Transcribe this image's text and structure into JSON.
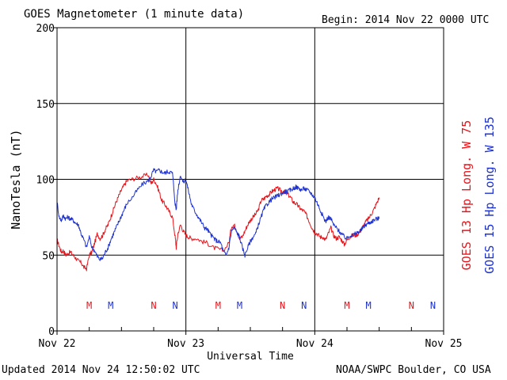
{
  "header": {
    "title": "GOES Magnetometer (1 minute data)",
    "begin": "Begin:  2014 Nov 22 0000 UTC"
  },
  "footer": {
    "updated": "Updated 2014 Nov 24 12:50:02 UTC",
    "credit": "NOAA/SWPC Boulder, CO USA"
  },
  "colors": {
    "goes13": "#e8141b",
    "goes15": "#1e32d2",
    "grid": "#000000"
  },
  "chart_data": {
    "type": "line",
    "title": "GOES Magnetometer (1 minute data)",
    "xlabel": "Universal Time",
    "ylabel": "NanoTesla (nT)",
    "ylim": [
      0,
      200
    ],
    "yticks": [
      0,
      50,
      100,
      150,
      200
    ],
    "xlim": [
      "2014-11-22 00:00",
      "2014-11-25 00:00"
    ],
    "xticks": [
      {
        "t": 0,
        "label": "Nov 22"
      },
      {
        "t": 24,
        "label": "Nov 23"
      },
      {
        "t": 48,
        "label": "Nov 24"
      },
      {
        "t": 72,
        "label": "Nov 25"
      }
    ],
    "x_unit": "hours after 2014-11-22 00:00 UTC",
    "grid": true,
    "legend_position": "right (vertical)",
    "series": [
      {
        "name": "GOES 13 Hp",
        "longitude": "Long. W 75",
        "color": "#e8141b",
        "points": [
          [
            0.0,
            60
          ],
          [
            0.4,
            56
          ],
          [
            0.8,
            52
          ],
          [
            1.2,
            53
          ],
          [
            1.6,
            50
          ],
          [
            2.0,
            51
          ],
          [
            2.5,
            52
          ],
          [
            3.0,
            50
          ],
          [
            3.5,
            48
          ],
          [
            4.0,
            46
          ],
          [
            4.5,
            45
          ],
          [
            5.0,
            42
          ],
          [
            5.5,
            41
          ],
          [
            6.0,
            50
          ],
          [
            6.5,
            52
          ],
          [
            7.0,
            58
          ],
          [
            7.5,
            64
          ],
          [
            8.0,
            61
          ],
          [
            8.5,
            63
          ],
          [
            9.0,
            67
          ],
          [
            9.5,
            70
          ],
          [
            10.0,
            75
          ],
          [
            10.5,
            80
          ],
          [
            11.0,
            85
          ],
          [
            11.5,
            89
          ],
          [
            12.0,
            93
          ],
          [
            12.5,
            96
          ],
          [
            13.0,
            99
          ],
          [
            14.0,
            100
          ],
          [
            15.0,
            101
          ],
          [
            16.0,
            102
          ],
          [
            17.0,
            103
          ],
          [
            17.5,
            97
          ],
          [
            18.0,
            100
          ],
          [
            18.5,
            97
          ],
          [
            19.0,
            92
          ],
          [
            19.5,
            86
          ],
          [
            20.0,
            84
          ],
          [
            20.5,
            81
          ],
          [
            21.0,
            78
          ],
          [
            21.5,
            75
          ],
          [
            22.0,
            62
          ],
          [
            22.2,
            55
          ],
          [
            22.5,
            64
          ],
          [
            23.0,
            70
          ],
          [
            23.5,
            66
          ],
          [
            24.0,
            63
          ],
          [
            24.5,
            62
          ],
          [
            25.0,
            61
          ],
          [
            26.0,
            61
          ],
          [
            27.0,
            59
          ],
          [
            28.0,
            58
          ],
          [
            29.0,
            55
          ],
          [
            30.0,
            54
          ],
          [
            31.0,
            53
          ],
          [
            32.0,
            58
          ],
          [
            32.5,
            69
          ],
          [
            33.0,
            70
          ],
          [
            33.5,
            66
          ],
          [
            34.0,
            61
          ],
          [
            34.5,
            62
          ],
          [
            35.0,
            66
          ],
          [
            35.5,
            70
          ],
          [
            36.0,
            73
          ],
          [
            36.5,
            75
          ],
          [
            37.0,
            77
          ],
          [
            37.5,
            80
          ],
          [
            38.0,
            86
          ],
          [
            38.5,
            87
          ],
          [
            39.0,
            89
          ],
          [
            39.5,
            90
          ],
          [
            40.0,
            92
          ],
          [
            40.5,
            93
          ],
          [
            41.0,
            94
          ],
          [
            41.5,
            93
          ],
          [
            42.0,
            92
          ],
          [
            42.5,
            91
          ],
          [
            43.0,
            90
          ],
          [
            43.5,
            88
          ],
          [
            44.0,
            85
          ],
          [
            44.5,
            84
          ],
          [
            45.0,
            82
          ],
          [
            45.5,
            80
          ],
          [
            46.0,
            79
          ],
          [
            46.5,
            76
          ],
          [
            47.0,
            72
          ],
          [
            47.5,
            68
          ],
          [
            48.0,
            65
          ],
          [
            48.5,
            64
          ],
          [
            49.0,
            62
          ],
          [
            49.5,
            62
          ],
          [
            50.0,
            60
          ],
          [
            50.5,
            64
          ],
          [
            51.0,
            68
          ],
          [
            51.5,
            63
          ],
          [
            52.0,
            61
          ],
          [
            52.5,
            62
          ],
          [
            53.0,
            60
          ],
          [
            53.5,
            57
          ],
          [
            54.0,
            60
          ],
          [
            54.5,
            62
          ],
          [
            55.0,
            63
          ],
          [
            55.5,
            63
          ],
          [
            56.0,
            64
          ],
          [
            56.5,
            66
          ],
          [
            57.0,
            69
          ],
          [
            57.5,
            72
          ],
          [
            58.0,
            74
          ],
          [
            58.5,
            77
          ],
          [
            59.0,
            80
          ],
          [
            59.5,
            84
          ],
          [
            60.0,
            88
          ]
        ]
      },
      {
        "name": "GOES 15 Hp",
        "longitude": "Long. W 135",
        "color": "#1e32d2",
        "points": [
          [
            0.0,
            85
          ],
          [
            0.4,
            75
          ],
          [
            0.8,
            73
          ],
          [
            1.2,
            76
          ],
          [
            1.6,
            74
          ],
          [
            2.0,
            75
          ],
          [
            2.5,
            74
          ],
          [
            3.0,
            73
          ],
          [
            3.5,
            71
          ],
          [
            4.0,
            70
          ],
          [
            4.5,
            64
          ],
          [
            5.0,
            60
          ],
          [
            5.5,
            55
          ],
          [
            6.0,
            62
          ],
          [
            6.5,
            55
          ],
          [
            7.0,
            53
          ],
          [
            7.5,
            49
          ],
          [
            8.0,
            47
          ],
          [
            8.5,
            48
          ],
          [
            9.0,
            52
          ],
          [
            9.5,
            55
          ],
          [
            10.0,
            60
          ],
          [
            10.5,
            64
          ],
          [
            11.0,
            68
          ],
          [
            11.5,
            72
          ],
          [
            12.0,
            76
          ],
          [
            12.5,
            80
          ],
          [
            13.0,
            84
          ],
          [
            14.0,
            88
          ],
          [
            15.0,
            93
          ],
          [
            16.0,
            97
          ],
          [
            17.0,
            99
          ],
          [
            17.5,
            102
          ],
          [
            18.0,
            106
          ],
          [
            18.5,
            105
          ],
          [
            19.0,
            106
          ],
          [
            19.5,
            105
          ],
          [
            20.0,
            104
          ],
          [
            20.5,
            105
          ],
          [
            21.0,
            105
          ],
          [
            21.5,
            104
          ],
          [
            22.0,
            84
          ],
          [
            22.2,
            80
          ],
          [
            22.5,
            93
          ],
          [
            23.0,
            103
          ],
          [
            23.5,
            98
          ],
          [
            24.0,
            100
          ],
          [
            24.5,
            92
          ],
          [
            25.0,
            84
          ],
          [
            25.5,
            80
          ],
          [
            26.0,
            77
          ],
          [
            26.5,
            74
          ],
          [
            27.0,
            71
          ],
          [
            27.5,
            68
          ],
          [
            28.0,
            67
          ],
          [
            28.5,
            64
          ],
          [
            29.0,
            62
          ],
          [
            29.5,
            60
          ],
          [
            30.0,
            59
          ],
          [
            30.5,
            58
          ],
          [
            31.0,
            52
          ],
          [
            31.5,
            50
          ],
          [
            32.0,
            55
          ],
          [
            32.5,
            66
          ],
          [
            33.0,
            68
          ],
          [
            33.5,
            65
          ],
          [
            34.0,
            62
          ],
          [
            34.5,
            55
          ],
          [
            35.0,
            50
          ],
          [
            35.5,
            55
          ],
          [
            36.0,
            59
          ],
          [
            36.5,
            62
          ],
          [
            37.0,
            64
          ],
          [
            37.5,
            70
          ],
          [
            38.0,
            75
          ],
          [
            38.5,
            80
          ],
          [
            39.0,
            83
          ],
          [
            39.5,
            85
          ],
          [
            40.0,
            87
          ],
          [
            40.5,
            88
          ],
          [
            41.0,
            89
          ],
          [
            41.5,
            90
          ],
          [
            42.0,
            91
          ],
          [
            42.5,
            92
          ],
          [
            43.0,
            92
          ],
          [
            43.5,
            93
          ],
          [
            44.0,
            94
          ],
          [
            44.5,
            95
          ],
          [
            45.0,
            94
          ],
          [
            45.5,
            93
          ],
          [
            46.0,
            94
          ],
          [
            46.5,
            93
          ],
          [
            47.0,
            92
          ],
          [
            47.5,
            90
          ],
          [
            48.0,
            88
          ],
          [
            48.5,
            84
          ],
          [
            49.0,
            80
          ],
          [
            49.5,
            76
          ],
          [
            50.0,
            72
          ],
          [
            50.5,
            75
          ],
          [
            51.0,
            74
          ],
          [
            51.5,
            70
          ],
          [
            52.0,
            68
          ],
          [
            52.5,
            66
          ],
          [
            53.0,
            64
          ],
          [
            53.5,
            62
          ],
          [
            54.0,
            61
          ],
          [
            54.5,
            63
          ],
          [
            55.0,
            63
          ],
          [
            55.5,
            64
          ],
          [
            56.0,
            65
          ],
          [
            56.5,
            66
          ],
          [
            57.0,
            68
          ],
          [
            57.5,
            70
          ],
          [
            58.0,
            71
          ],
          [
            58.5,
            72
          ],
          [
            59.0,
            73
          ],
          [
            59.5,
            74
          ],
          [
            60.0,
            74
          ]
        ]
      }
    ],
    "annotations": [
      {
        "label": "M",
        "t": 6,
        "series": "GOES 13 Hp"
      },
      {
        "label": "M",
        "t": 10,
        "series": "GOES 15 Hp"
      },
      {
        "label": "N",
        "t": 18,
        "series": "GOES 13 Hp"
      },
      {
        "label": "N",
        "t": 22,
        "series": "GOES 15 Hp"
      },
      {
        "label": "M",
        "t": 30,
        "series": "GOES 13 Hp"
      },
      {
        "label": "M",
        "t": 34,
        "series": "GOES 15 Hp"
      },
      {
        "label": "N",
        "t": 42,
        "series": "GOES 13 Hp"
      },
      {
        "label": "N",
        "t": 46,
        "series": "GOES 15 Hp"
      },
      {
        "label": "M",
        "t": 54,
        "series": "GOES 13 Hp"
      },
      {
        "label": "M",
        "t": 58,
        "series": "GOES 15 Hp"
      },
      {
        "label": "N",
        "t": 66,
        "series": "GOES 13 Hp"
      },
      {
        "label": "N",
        "t": 70,
        "series": "GOES 15 Hp"
      }
    ]
  }
}
